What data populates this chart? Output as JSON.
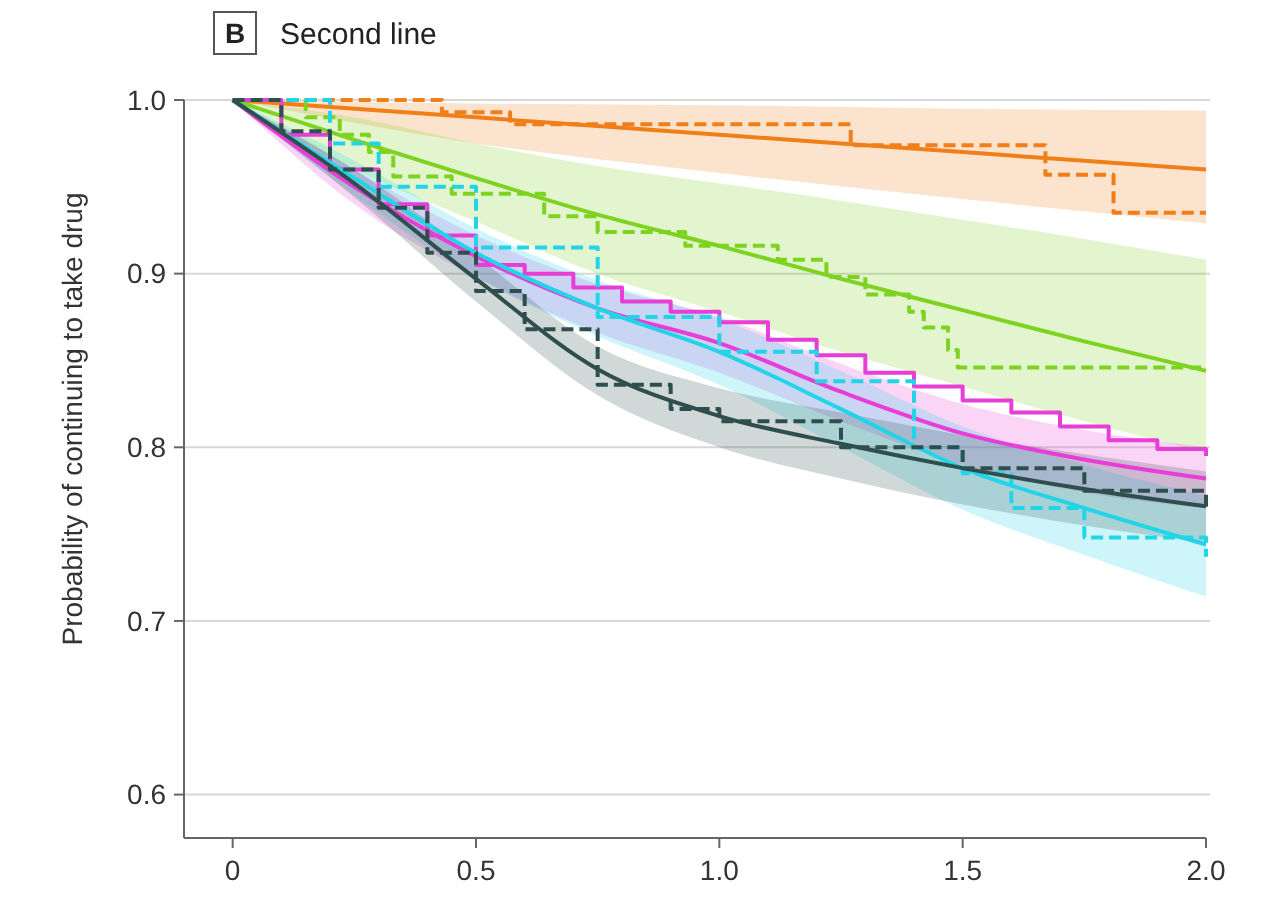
{
  "chart_data": {
    "type": "line",
    "title": "Second line",
    "annotations": [
      "B"
    ],
    "ylabel": "Probability of continuing to take drug",
    "xlim": [
      -0.1,
      2.0
    ],
    "xticks": [
      0,
      {
        "value": 0.5,
        "label": "0.5"
      },
      {
        "value": 1,
        "label": "1.0"
      },
      {
        "value": 1.5,
        "label": "1.5"
      },
      {
        "value": 2,
        "label": "2.0"
      }
    ],
    "ylim": [
      0.575,
      1.0
    ],
    "yticks": [
      {
        "value": 0.6,
        "label": "0.6"
      },
      {
        "value": 0.7,
        "label": "0.7"
      },
      {
        "value": 0.8,
        "label": "0.8"
      },
      {
        "value": 0.9,
        "label": "0.9"
      },
      {
        "value": 1,
        "label": "1.0"
      }
    ],
    "grid": "y",
    "series": [
      {
        "color": "#f07f1a",
        "x": [
          0,
          0.5,
          1,
          1.5,
          2
        ],
        "values": [
          1,
          0.99,
          0.98,
          0.97,
          0.96
        ],
        "lower": [
          1,
          0.975,
          0.958,
          0.943,
          0.929
        ],
        "upper": [
          1,
          0.998,
          0.997,
          0.995,
          0.994
        ]
      },
      {
        "type": "step",
        "line_style": "dashed",
        "color": "#f07f1a",
        "x": [
          0,
          0.43,
          0.57,
          1.27,
          1.67,
          1.81,
          2.0
        ],
        "values": [
          1,
          0.993,
          0.986,
          0.974,
          0.957,
          0.935,
          0.935
        ]
      },
      {
        "color": "#7ed321",
        "x": [
          0,
          0.25,
          0.5,
          0.75,
          1,
          1.25,
          1.5,
          1.75,
          2
        ],
        "values": [
          1,
          0.977,
          0.955,
          0.934,
          0.916,
          0.897,
          0.879,
          0.861,
          0.844
        ],
        "lower": [
          1,
          0.96,
          0.93,
          0.9,
          0.878,
          0.855,
          0.835,
          0.815,
          0.797
        ],
        "upper": [
          1,
          0.99,
          0.975,
          0.962,
          0.952,
          0.942,
          0.931,
          0.92,
          0.908
        ]
      },
      {
        "type": "step",
        "line_style": "dashed",
        "color": "#7ed321",
        "x": [
          0,
          0.15,
          0.22,
          0.28,
          0.33,
          0.45,
          0.64,
          0.75,
          0.93,
          1.12,
          1.22,
          1.3,
          1.39,
          1.42,
          1.47,
          1.49,
          2.0
        ],
        "values": [
          1,
          0.99,
          0.98,
          0.97,
          0.956,
          0.946,
          0.933,
          0.924,
          0.916,
          0.908,
          0.898,
          0.888,
          0.878,
          0.869,
          0.856,
          0.846,
          0.846
        ]
      },
      {
        "color": "#e83ed8",
        "x": [
          0,
          0.25,
          0.5,
          0.75,
          1,
          1.25,
          1.5,
          1.75,
          2
        ],
        "values": [
          1,
          0.95,
          0.91,
          0.88,
          0.86,
          0.832,
          0.808,
          0.793,
          0.782
        ],
        "lower": [
          1,
          0.94,
          0.898,
          0.866,
          0.843,
          0.815,
          0.79,
          0.774,
          0.765
        ],
        "upper": [
          1,
          0.96,
          0.922,
          0.894,
          0.875,
          0.848,
          0.825,
          0.81,
          0.8
        ]
      },
      {
        "type": "step",
        "color": "#e83ed8",
        "x": [
          0,
          0.1,
          0.2,
          0.3,
          0.4,
          0.5,
          0.6,
          0.7,
          0.8,
          0.9,
          1.0,
          1.1,
          1.2,
          1.3,
          1.4,
          1.5,
          1.6,
          1.7,
          1.8,
          1.9,
          2.0
        ],
        "values": [
          1,
          0.98,
          0.96,
          0.94,
          0.922,
          0.905,
          0.9,
          0.892,
          0.884,
          0.878,
          0.872,
          0.862,
          0.853,
          0.843,
          0.835,
          0.827,
          0.82,
          0.812,
          0.804,
          0.799,
          0.795
        ]
      },
      {
        "color": "#22d4e8",
        "x": [
          0,
          0.25,
          0.5,
          0.75,
          1,
          1.25,
          1.5,
          1.75,
          2
        ],
        "values": [
          1,
          0.955,
          0.912,
          0.88,
          0.855,
          0.822,
          0.788,
          0.765,
          0.744
        ],
        "lower": [
          1,
          0.945,
          0.898,
          0.864,
          0.836,
          0.8,
          0.764,
          0.738,
          0.714
        ],
        "upper": [
          1,
          0.965,
          0.926,
          0.896,
          0.874,
          0.844,
          0.812,
          0.79,
          0.772
        ]
      },
      {
        "type": "step",
        "line_style": "dashed",
        "color": "#22d4e8",
        "x": [
          0,
          0.2,
          0.3,
          0.5,
          0.75,
          1.0,
          1.2,
          1.4,
          1.5,
          1.6,
          1.75,
          2.0
        ],
        "values": [
          1,
          0.975,
          0.95,
          0.915,
          0.875,
          0.855,
          0.838,
          0.8,
          0.785,
          0.765,
          0.748,
          0.737
        ]
      },
      {
        "color": "#2f4f4f",
        "x": [
          0,
          0.25,
          0.5,
          0.75,
          1,
          1.25,
          1.5,
          1.75,
          2
        ],
        "values": [
          1,
          0.952,
          0.897,
          0.845,
          0.818,
          0.802,
          0.788,
          0.776,
          0.766
        ],
        "lower": [
          1,
          0.944,
          0.884,
          0.83,
          0.8,
          0.782,
          0.767,
          0.755,
          0.745
        ],
        "upper": [
          1,
          0.96,
          0.91,
          0.858,
          0.834,
          0.82,
          0.807,
          0.796,
          0.786
        ]
      },
      {
        "type": "step",
        "line_style": "dashed",
        "color": "#2f4f4f",
        "x": [
          0,
          0.1,
          0.2,
          0.3,
          0.4,
          0.5,
          0.6,
          0.75,
          0.9,
          1.0,
          1.25,
          1.5,
          1.75,
          2.0
        ],
        "values": [
          1,
          0.982,
          0.96,
          0.938,
          0.912,
          0.89,
          0.868,
          0.836,
          0.822,
          0.815,
          0.8,
          0.788,
          0.775,
          0.765
        ]
      }
    ]
  }
}
